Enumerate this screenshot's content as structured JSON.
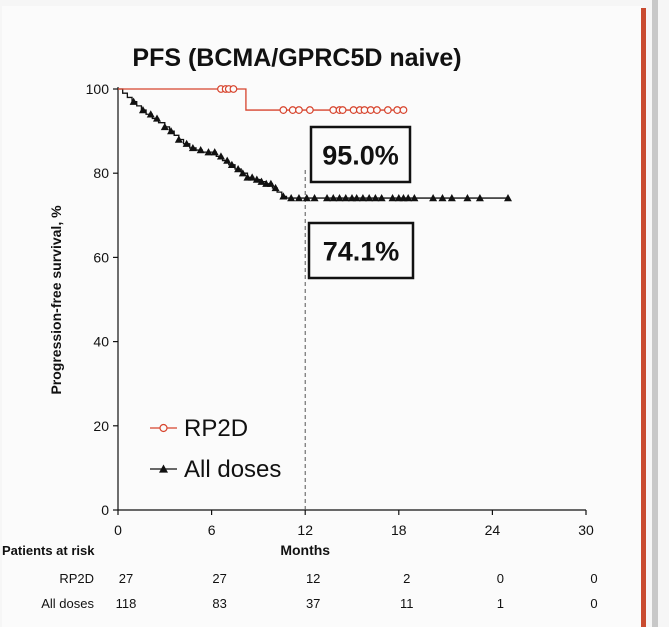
{
  "chart_data": {
    "type": "line",
    "title": "PFS (BCMA/GPRC5D naive)",
    "xlabel": "Months",
    "ylabel": "Progression-free survival, %",
    "xlim": [
      0,
      30
    ],
    "ylim": [
      0,
      100
    ],
    "x_ticks": [
      0,
      6,
      12,
      18,
      24,
      30
    ],
    "y_ticks": [
      0,
      20,
      40,
      60,
      80,
      100
    ],
    "reference_line_x": 12,
    "colors": {
      "rp2d": "#d7432c",
      "all_doses": "#111111"
    },
    "series": [
      {
        "name": "RP2D",
        "marker": "open-circle",
        "steps": [
          [
            0,
            100
          ],
          [
            8.2,
            100
          ],
          [
            8.2,
            95
          ],
          [
            18.5,
            95
          ]
        ],
        "censor_x": [
          6.6,
          6.9,
          7.1,
          7.4,
          10.6,
          11.2,
          11.6,
          12.3,
          13.8,
          14.2,
          14.4,
          15.1,
          15.5,
          15.8,
          16.2,
          16.6,
          17.3,
          17.9,
          18.3
        ]
      },
      {
        "name": "All doses",
        "marker": "filled-triangle",
        "steps": [
          [
            0,
            100
          ],
          [
            0.3,
            99
          ],
          [
            0.6,
            98
          ],
          [
            0.9,
            97
          ],
          [
            1.2,
            96
          ],
          [
            1.5,
            95
          ],
          [
            1.8,
            94
          ],
          [
            2.2,
            93
          ],
          [
            2.6,
            92
          ],
          [
            3.0,
            91
          ],
          [
            3.3,
            90
          ],
          [
            3.6,
            89
          ],
          [
            3.9,
            88
          ],
          [
            4.2,
            87
          ],
          [
            4.6,
            86
          ],
          [
            5.0,
            85.5
          ],
          [
            5.4,
            85
          ],
          [
            6.3,
            84
          ],
          [
            6.7,
            83
          ],
          [
            7.1,
            82
          ],
          [
            7.5,
            81
          ],
          [
            7.9,
            80
          ],
          [
            8.3,
            79
          ],
          [
            8.7,
            78.5
          ],
          [
            9.1,
            78
          ],
          [
            9.5,
            77.5
          ],
          [
            9.9,
            76.5
          ],
          [
            10.2,
            75.5
          ],
          [
            10.5,
            74.5
          ],
          [
            10.8,
            74.1
          ],
          [
            25,
            74.1
          ]
        ],
        "censor_x": [
          1.0,
          1.6,
          2.1,
          2.5,
          3.0,
          3.4,
          3.9,
          4.4,
          4.8,
          5.3,
          5.8,
          6.2,
          6.6,
          7.0,
          7.3,
          7.7,
          8.0,
          8.3,
          8.6,
          8.9,
          9.2,
          9.5,
          9.8,
          10.1,
          10.6,
          11.1,
          11.6,
          12.1,
          12.6,
          13.4,
          13.8,
          14.2,
          14.6,
          15.0,
          15.3,
          15.7,
          16.1,
          16.5,
          16.9,
          17.6,
          18.0,
          18.3,
          18.6,
          19.0,
          20.2,
          20.8,
          21.4,
          22.4,
          23.2,
          25.0
        ]
      }
    ],
    "annotations": [
      {
        "series": "RP2D",
        "text": "95.0%"
      },
      {
        "series": "All doses",
        "text": "74.1%"
      }
    ],
    "legend": {
      "position": "bottom-left",
      "entries": [
        "RP2D",
        "All doses"
      ]
    }
  },
  "risk_table": {
    "header": "Patients at risk",
    "rows": [
      {
        "label": "RP2D",
        "values": [
          "27",
          "27",
          "12",
          "2",
          "0",
          "0"
        ]
      },
      {
        "label": "All doses",
        "values": [
          "118",
          "83",
          "37",
          "11",
          "1",
          "0"
        ]
      }
    ]
  }
}
